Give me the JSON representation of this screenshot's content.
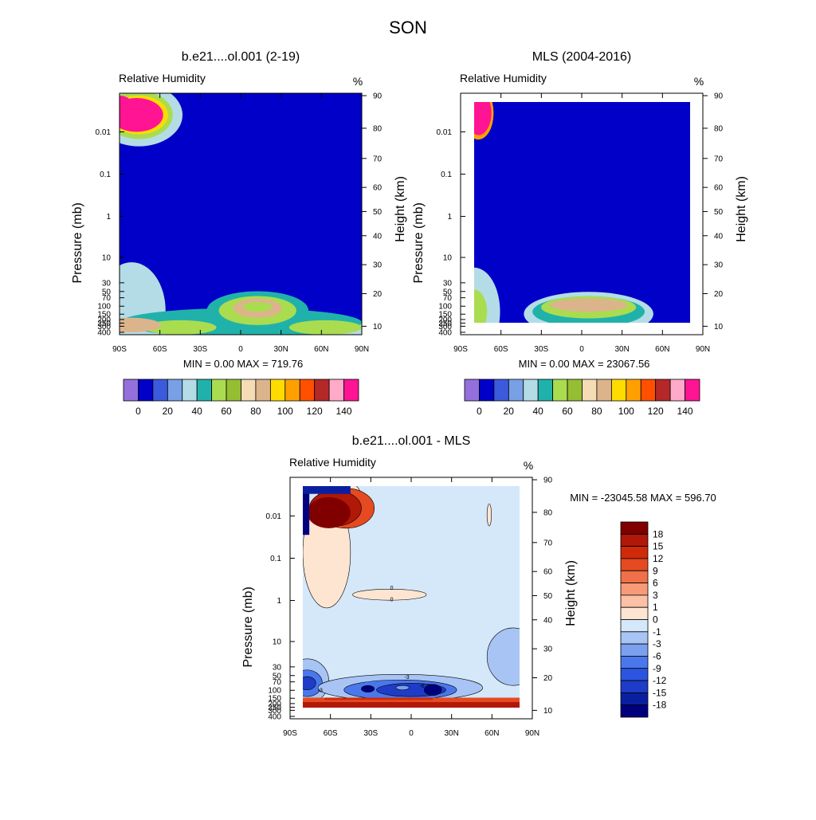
{
  "figure_title": "SON",
  "colors": {
    "rh_levels": [
      "#9370db",
      "#0000c8",
      "#3c5adc",
      "#78a0e6",
      "#b4dce6",
      "#20b2aa",
      "#aadc50",
      "#96be32",
      "#f5dcb4",
      "#dcb48c",
      "#ffdc00",
      "#ffa000",
      "#ff5000",
      "#b42828",
      "#ffaac8",
      "#ff1493"
    ],
    "diff_levels": [
      "#00007f",
      "#0a1fa0",
      "#1e3cc8",
      "#2b55e0",
      "#4a78ec",
      "#7ba0f0",
      "#a8c4f5",
      "#d5e8fa",
      "#fde5d2",
      "#fbc0a5",
      "#f79a78",
      "#f0704a",
      "#e54a20",
      "#d02a0a",
      "#b01808",
      "#800000"
    ]
  },
  "chart_data": [
    {
      "type": "heatmap",
      "title": "b.e21....ol.001 (2-19)",
      "left_label": "Relative Humidity",
      "unit": "%",
      "ylabel": "Pressure (mb)",
      "ylabel_right": "Height (km)",
      "x_ticks": [
        "90S",
        "60S",
        "30S",
        "0",
        "30N",
        "60N",
        "90N"
      ],
      "y_ticks": [
        "0.01",
        "0.1",
        "1",
        "10",
        "30",
        "50",
        "70",
        "100",
        "150",
        "200",
        "250",
        "300",
        "400"
      ],
      "height_ticks": [
        "90",
        "80",
        "70",
        "60",
        "50",
        "40",
        "30",
        "20",
        "10"
      ],
      "stats": "MIN =   0.00  MAX = 719.76",
      "colorbar_labels": [
        "0",
        "20",
        "40",
        "60",
        "80",
        "100",
        "120",
        "140"
      ],
      "xlim": [
        -90,
        90
      ],
      "ylim_mb": [
        400,
        0.002
      ]
    },
    {
      "type": "heatmap",
      "title": "MLS (2004-2016)",
      "left_label": "Relative Humidity",
      "unit": "%",
      "ylabel": "Pressure (mb)",
      "ylabel_right": "Height (km)",
      "x_ticks": [
        "90S",
        "60S",
        "30S",
        "0",
        "30N",
        "60N",
        "90N"
      ],
      "y_ticks": [
        "0.01",
        "0.1",
        "1",
        "10",
        "30",
        "50",
        "70",
        "100",
        "150",
        "200",
        "250",
        "300",
        "400"
      ],
      "height_ticks": [
        "90",
        "80",
        "70",
        "60",
        "50",
        "40",
        "30",
        "20",
        "10"
      ],
      "stats": "MIN =   0.00  MAX = 23067.56",
      "colorbar_labels": [
        "0",
        "20",
        "40",
        "60",
        "80",
        "100",
        "120",
        "140"
      ],
      "xlim": [
        -90,
        90
      ],
      "ylim_mb": [
        400,
        0.002
      ]
    },
    {
      "type": "heatmap",
      "title": "b.e21....ol.001 - MLS",
      "left_label": "Relative Humidity",
      "unit": "%",
      "ylabel": "Pressure (mb)",
      "ylabel_right": "Height (km)",
      "x_ticks": [
        "90S",
        "60S",
        "30S",
        "0",
        "30N",
        "60N",
        "90N"
      ],
      "y_ticks": [
        "0.01",
        "0.1",
        "1",
        "10",
        "30",
        "50",
        "70",
        "100",
        "150",
        "200",
        "250",
        "300",
        "400"
      ],
      "height_ticks": [
        "90",
        "80",
        "70",
        "60",
        "50",
        "40",
        "30",
        "20",
        "10"
      ],
      "stats": "MIN = -23045.58  MAX = 596.70",
      "colorbar_labels": [
        "-18",
        "-15",
        "-12",
        "-9",
        "-6",
        "-3",
        "-1",
        "0",
        "1",
        "3",
        "6",
        "9",
        "12",
        "15",
        "18"
      ],
      "contour_labels": [
        "0",
        "0",
        "-3",
        "-3",
        "-6"
      ],
      "xlim": [
        -90,
        90
      ],
      "ylim_mb": [
        400,
        0.002
      ]
    }
  ]
}
